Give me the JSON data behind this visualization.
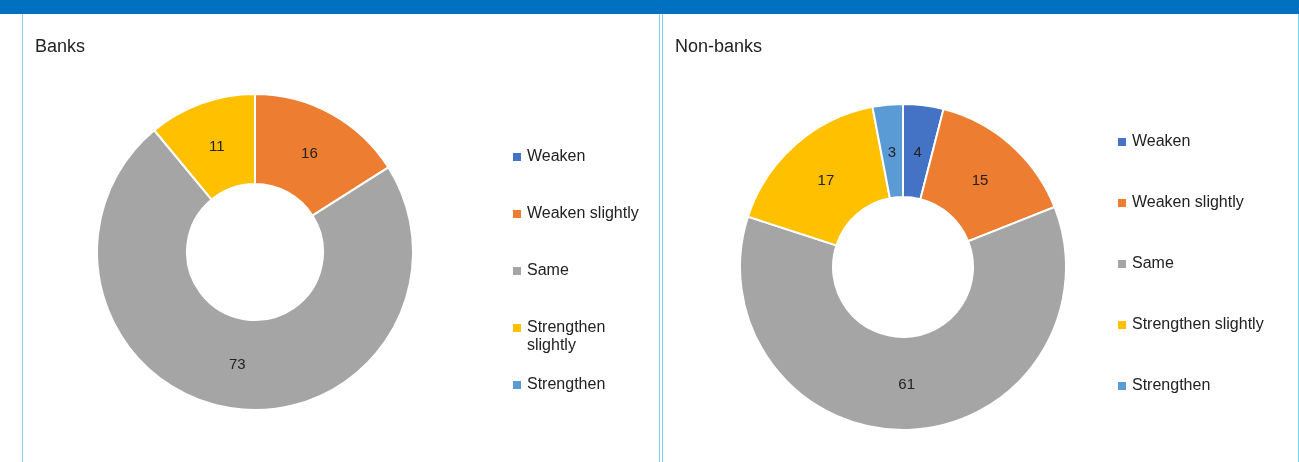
{
  "chart_data": [
    {
      "type": "donut",
      "title": "Banks",
      "categories": [
        "Weaken",
        "Weaken slightly",
        "Same",
        "Strengthen slightly",
        "Strengthen"
      ],
      "values": [
        0,
        16,
        73,
        11,
        0
      ],
      "value_labels": [
        null,
        "16",
        "73",
        "11",
        null
      ],
      "colors": [
        "#4472c4",
        "#ed7d31",
        "#a5a5a5",
        "#ffc000",
        "#5b9bd5"
      ],
      "legend": "right"
    },
    {
      "type": "donut",
      "title": "Non-banks",
      "categories": [
        "Weaken",
        "Weaken slightly",
        "Same",
        "Strengthen slightly",
        "Strengthen"
      ],
      "values": [
        4,
        15,
        61,
        17,
        3
      ],
      "value_labels": [
        "4",
        "15",
        "61",
        "17",
        "3"
      ],
      "colors": [
        "#4472c4",
        "#ed7d31",
        "#a5a5a5",
        "#ffc000",
        "#5b9bd5"
      ],
      "legend": "right"
    }
  ]
}
